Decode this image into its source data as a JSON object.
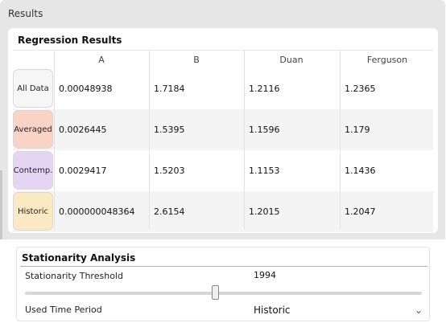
{
  "results": {
    "title": "Results",
    "regression": {
      "title": "Regression Results",
      "columns": [
        "A",
        "B",
        "Duan",
        "Ferguson"
      ],
      "rows": [
        {
          "label": "All Data",
          "color": "#f6f6f6",
          "values": [
            "0.00048938",
            "1.7184",
            "1.2116",
            "1.2365"
          ]
        },
        {
          "label": "Averaged",
          "color": "#f9d3c6",
          "values": [
            "0.0026445",
            "1.5395",
            "1.1596",
            "1.179"
          ]
        },
        {
          "label": "Contemp.",
          "color": "#e6d4f5",
          "values": [
            "0.0029417",
            "1.5203",
            "1.1153",
            "1.1436"
          ]
        },
        {
          "label": "Historic",
          "color": "#fbe9c4",
          "values": [
            "0.000000048364",
            "2.6154",
            "1.2015",
            "1.2047"
          ]
        }
      ]
    }
  },
  "stationarity": {
    "title": "Stationarity Analysis",
    "threshold_label": "Stationarity Threshold",
    "threshold_value": "1994",
    "slider_fraction": 0.48,
    "period_label": "Used Time Period",
    "period_value": "Historic",
    "chevron_icon": "chevron-down-icon"
  }
}
